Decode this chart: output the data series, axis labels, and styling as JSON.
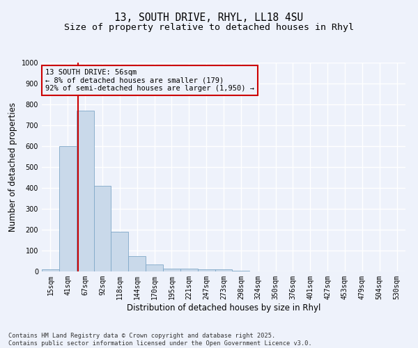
{
  "title1": "13, SOUTH DRIVE, RHYL, LL18 4SU",
  "title2": "Size of property relative to detached houses in Rhyl",
  "xlabel": "Distribution of detached houses by size in Rhyl",
  "ylabel": "Number of detached properties",
  "categories": [
    "15sqm",
    "41sqm",
    "67sqm",
    "92sqm",
    "118sqm",
    "144sqm",
    "170sqm",
    "195sqm",
    "221sqm",
    "247sqm",
    "273sqm",
    "298sqm",
    "324sqm",
    "350sqm",
    "376sqm",
    "401sqm",
    "427sqm",
    "453sqm",
    "479sqm",
    "504sqm",
    "530sqm"
  ],
  "values": [
    10,
    600,
    770,
    410,
    190,
    75,
    35,
    15,
    12,
    10,
    10,
    5,
    0,
    0,
    0,
    0,
    0,
    0,
    0,
    0,
    0
  ],
  "bar_color": "#c9d9ea",
  "bar_edge_color": "#7fa8c8",
  "background_color": "#eef2fb",
  "grid_color": "#ffffff",
  "vline_color": "#cc0000",
  "annotation_text": "13 SOUTH DRIVE: 56sqm\n← 8% of detached houses are smaller (179)\n92% of semi-detached houses are larger (1,950) →",
  "ylim": [
    0,
    1000
  ],
  "yticks": [
    0,
    100,
    200,
    300,
    400,
    500,
    600,
    700,
    800,
    900,
    1000
  ],
  "footer_text": "Contains HM Land Registry data © Crown copyright and database right 2025.\nContains public sector information licensed under the Open Government Licence v3.0.",
  "title_fontsize": 10.5,
  "subtitle_fontsize": 9.5,
  "tick_fontsize": 7,
  "label_fontsize": 8.5,
  "annotation_fontsize": 7.5,
  "footer_fontsize": 6.2
}
